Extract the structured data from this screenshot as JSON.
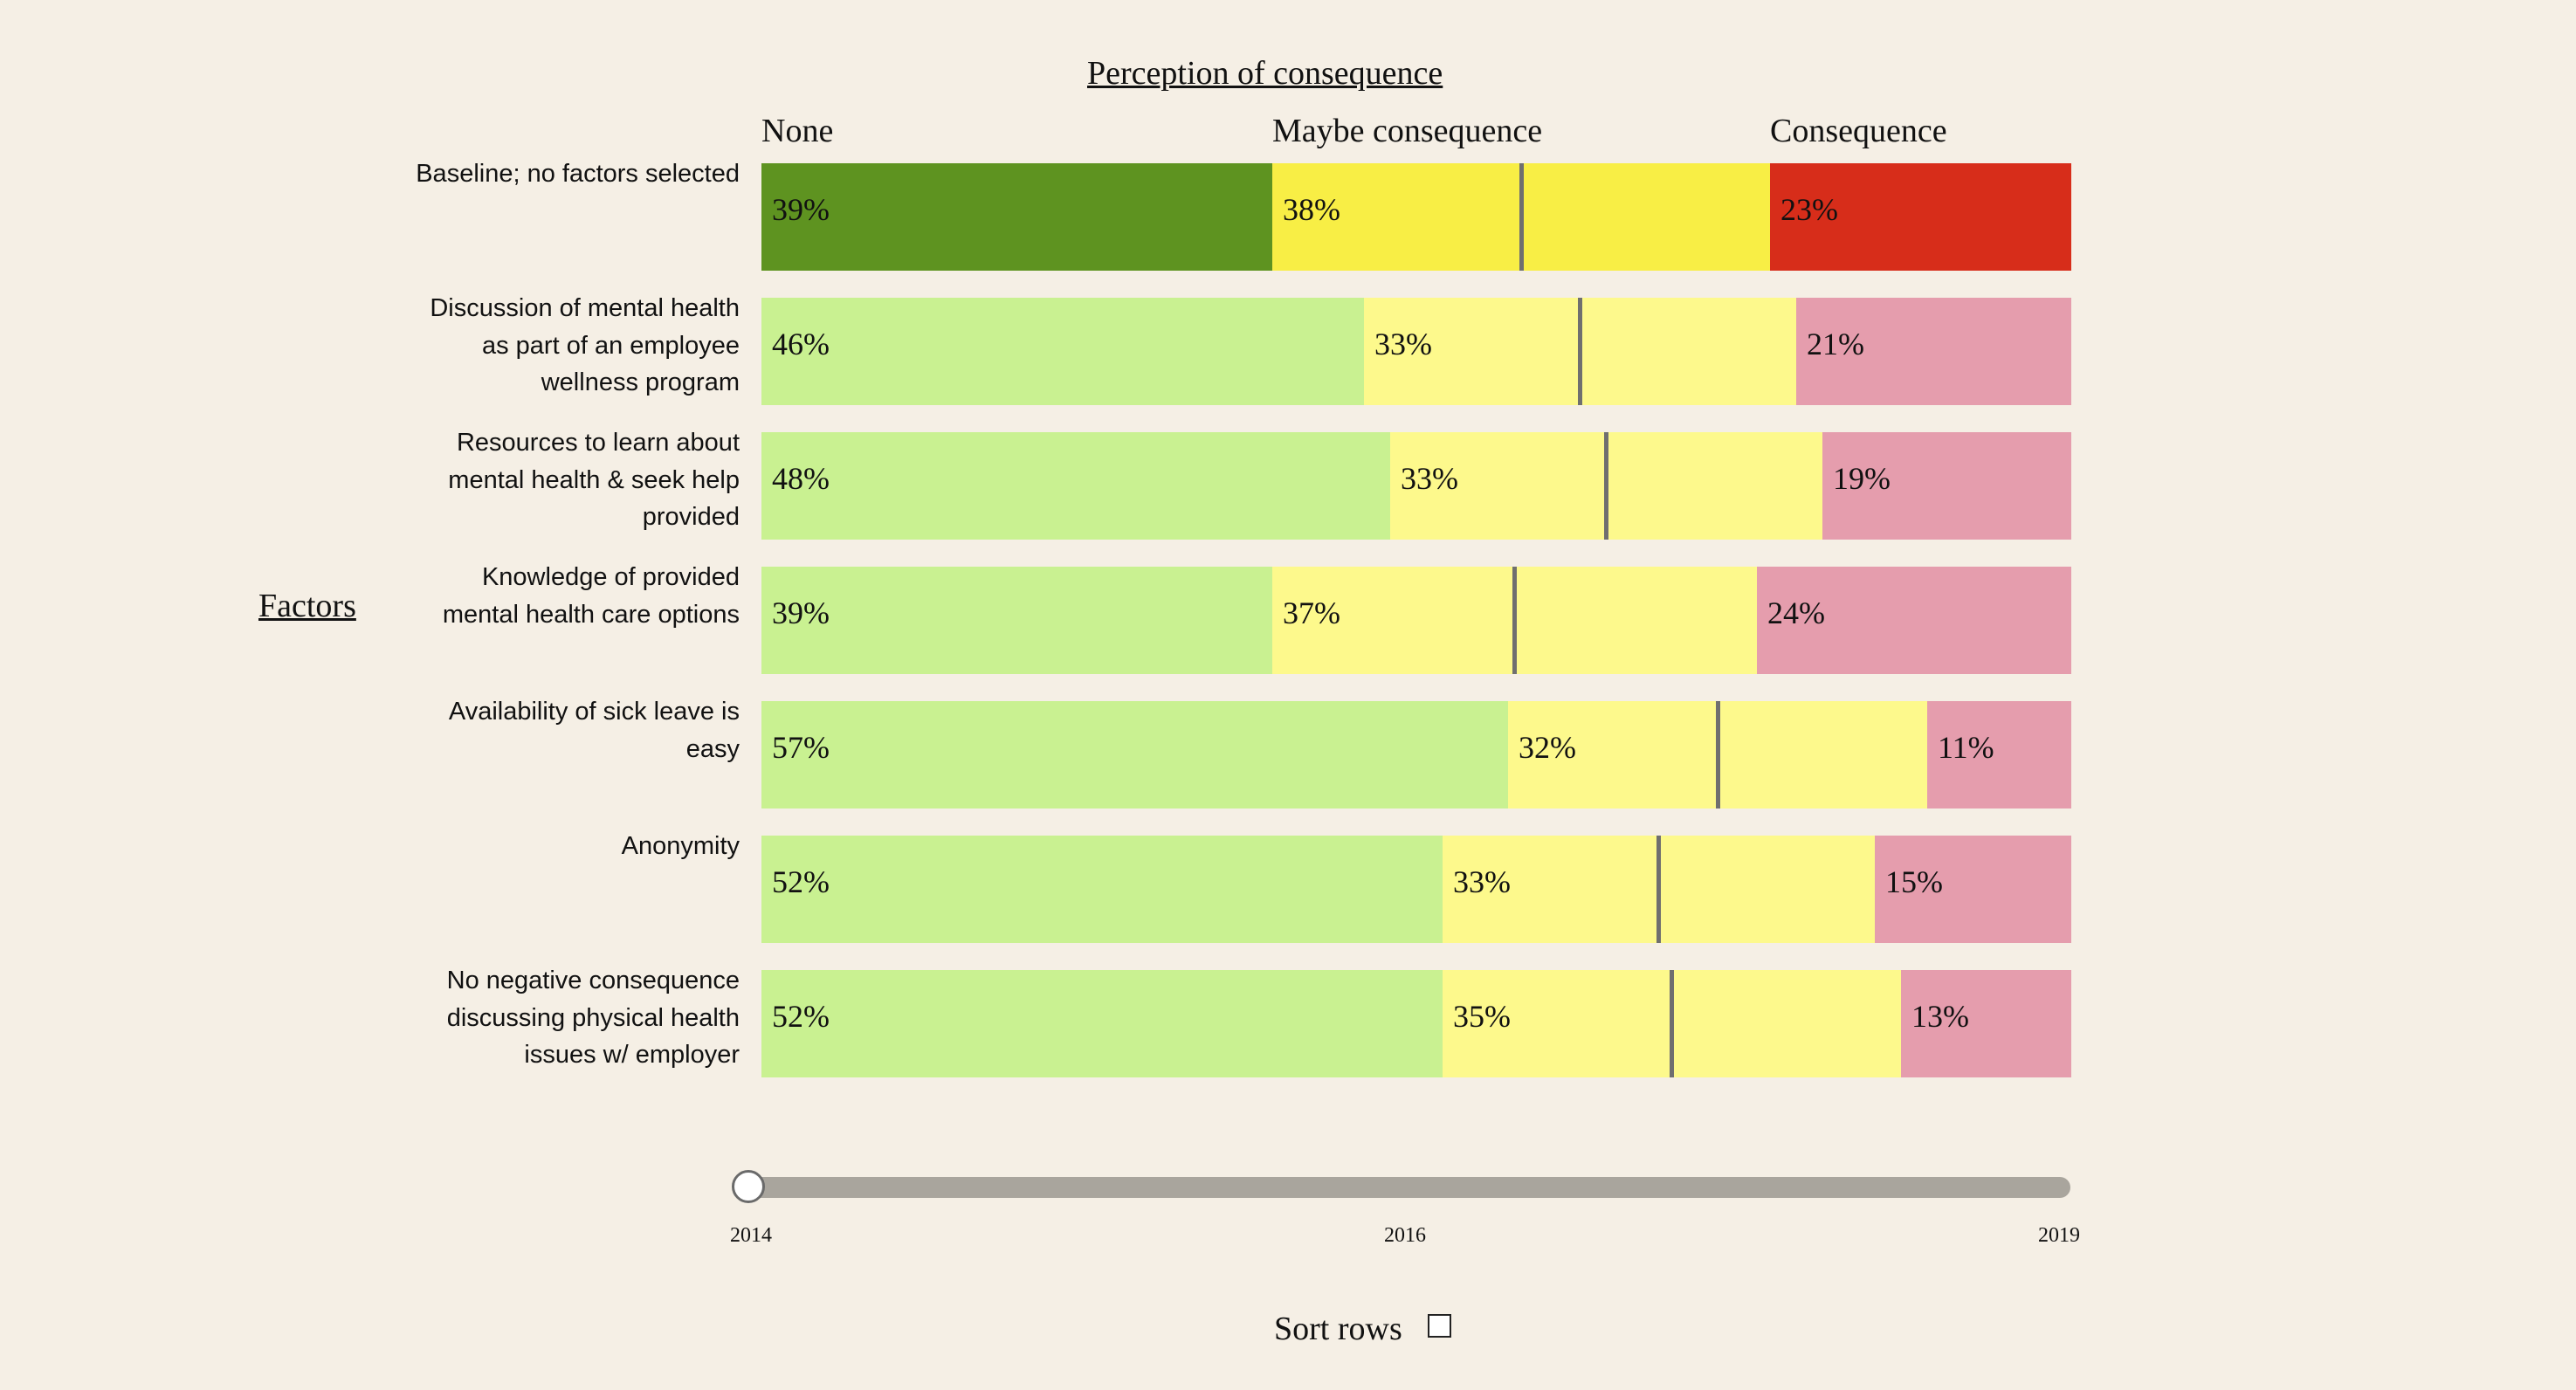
{
  "perception_title": "Perception of consequence",
  "factors_label": "Factors",
  "chart_data": {
    "type": "bar",
    "stacked": true,
    "orientation": "horizontal",
    "title": "Perception of consequence",
    "ylabel": "Factors",
    "series_names": [
      "None",
      "Maybe consequence",
      "Consequence"
    ],
    "series_colors": {
      "baseline": [
        "#5e9320",
        "#f8ee45",
        "#d72d1a"
      ],
      "factor": [
        "#c9f191",
        "#fdf98c",
        "#e59dad"
      ]
    },
    "categories": [
      "Baseline; no factors selected",
      "Discussion of mental health as part of an employee wellness program",
      "Resources to learn about mental health & seek help provided",
      "Knowledge of provided mental health care options",
      "Availability of sick leave is easy",
      "Anonymity",
      "No negative consequence discussing physical health issues w/ employer"
    ],
    "rows": [
      {
        "values": [
          39,
          38,
          23
        ],
        "labels": [
          "39%",
          "38%",
          "23%"
        ]
      },
      {
        "values": [
          46,
          33,
          21
        ],
        "labels": [
          "46%",
          "33%",
          "21%"
        ]
      },
      {
        "values": [
          48,
          33,
          19
        ],
        "labels": [
          "48%",
          "33%",
          "19%"
        ]
      },
      {
        "values": [
          39,
          37,
          24
        ],
        "labels": [
          "39%",
          "37%",
          "24%"
        ]
      },
      {
        "values": [
          57,
          32,
          11
        ],
        "labels": [
          "57%",
          "32%",
          "11%"
        ]
      },
      {
        "values": [
          52,
          33,
          15
        ],
        "labels": [
          "52%",
          "33%",
          "15%"
        ]
      },
      {
        "values": [
          52,
          35,
          13
        ],
        "labels": [
          "52%",
          "35%",
          "13%"
        ]
      }
    ],
    "xlim": [
      0,
      100
    ]
  },
  "slider": {
    "ticks": [
      "2014",
      "2016",
      "2019"
    ],
    "value": "2014"
  },
  "sort_label": "Sort rows",
  "sort_checked": false
}
